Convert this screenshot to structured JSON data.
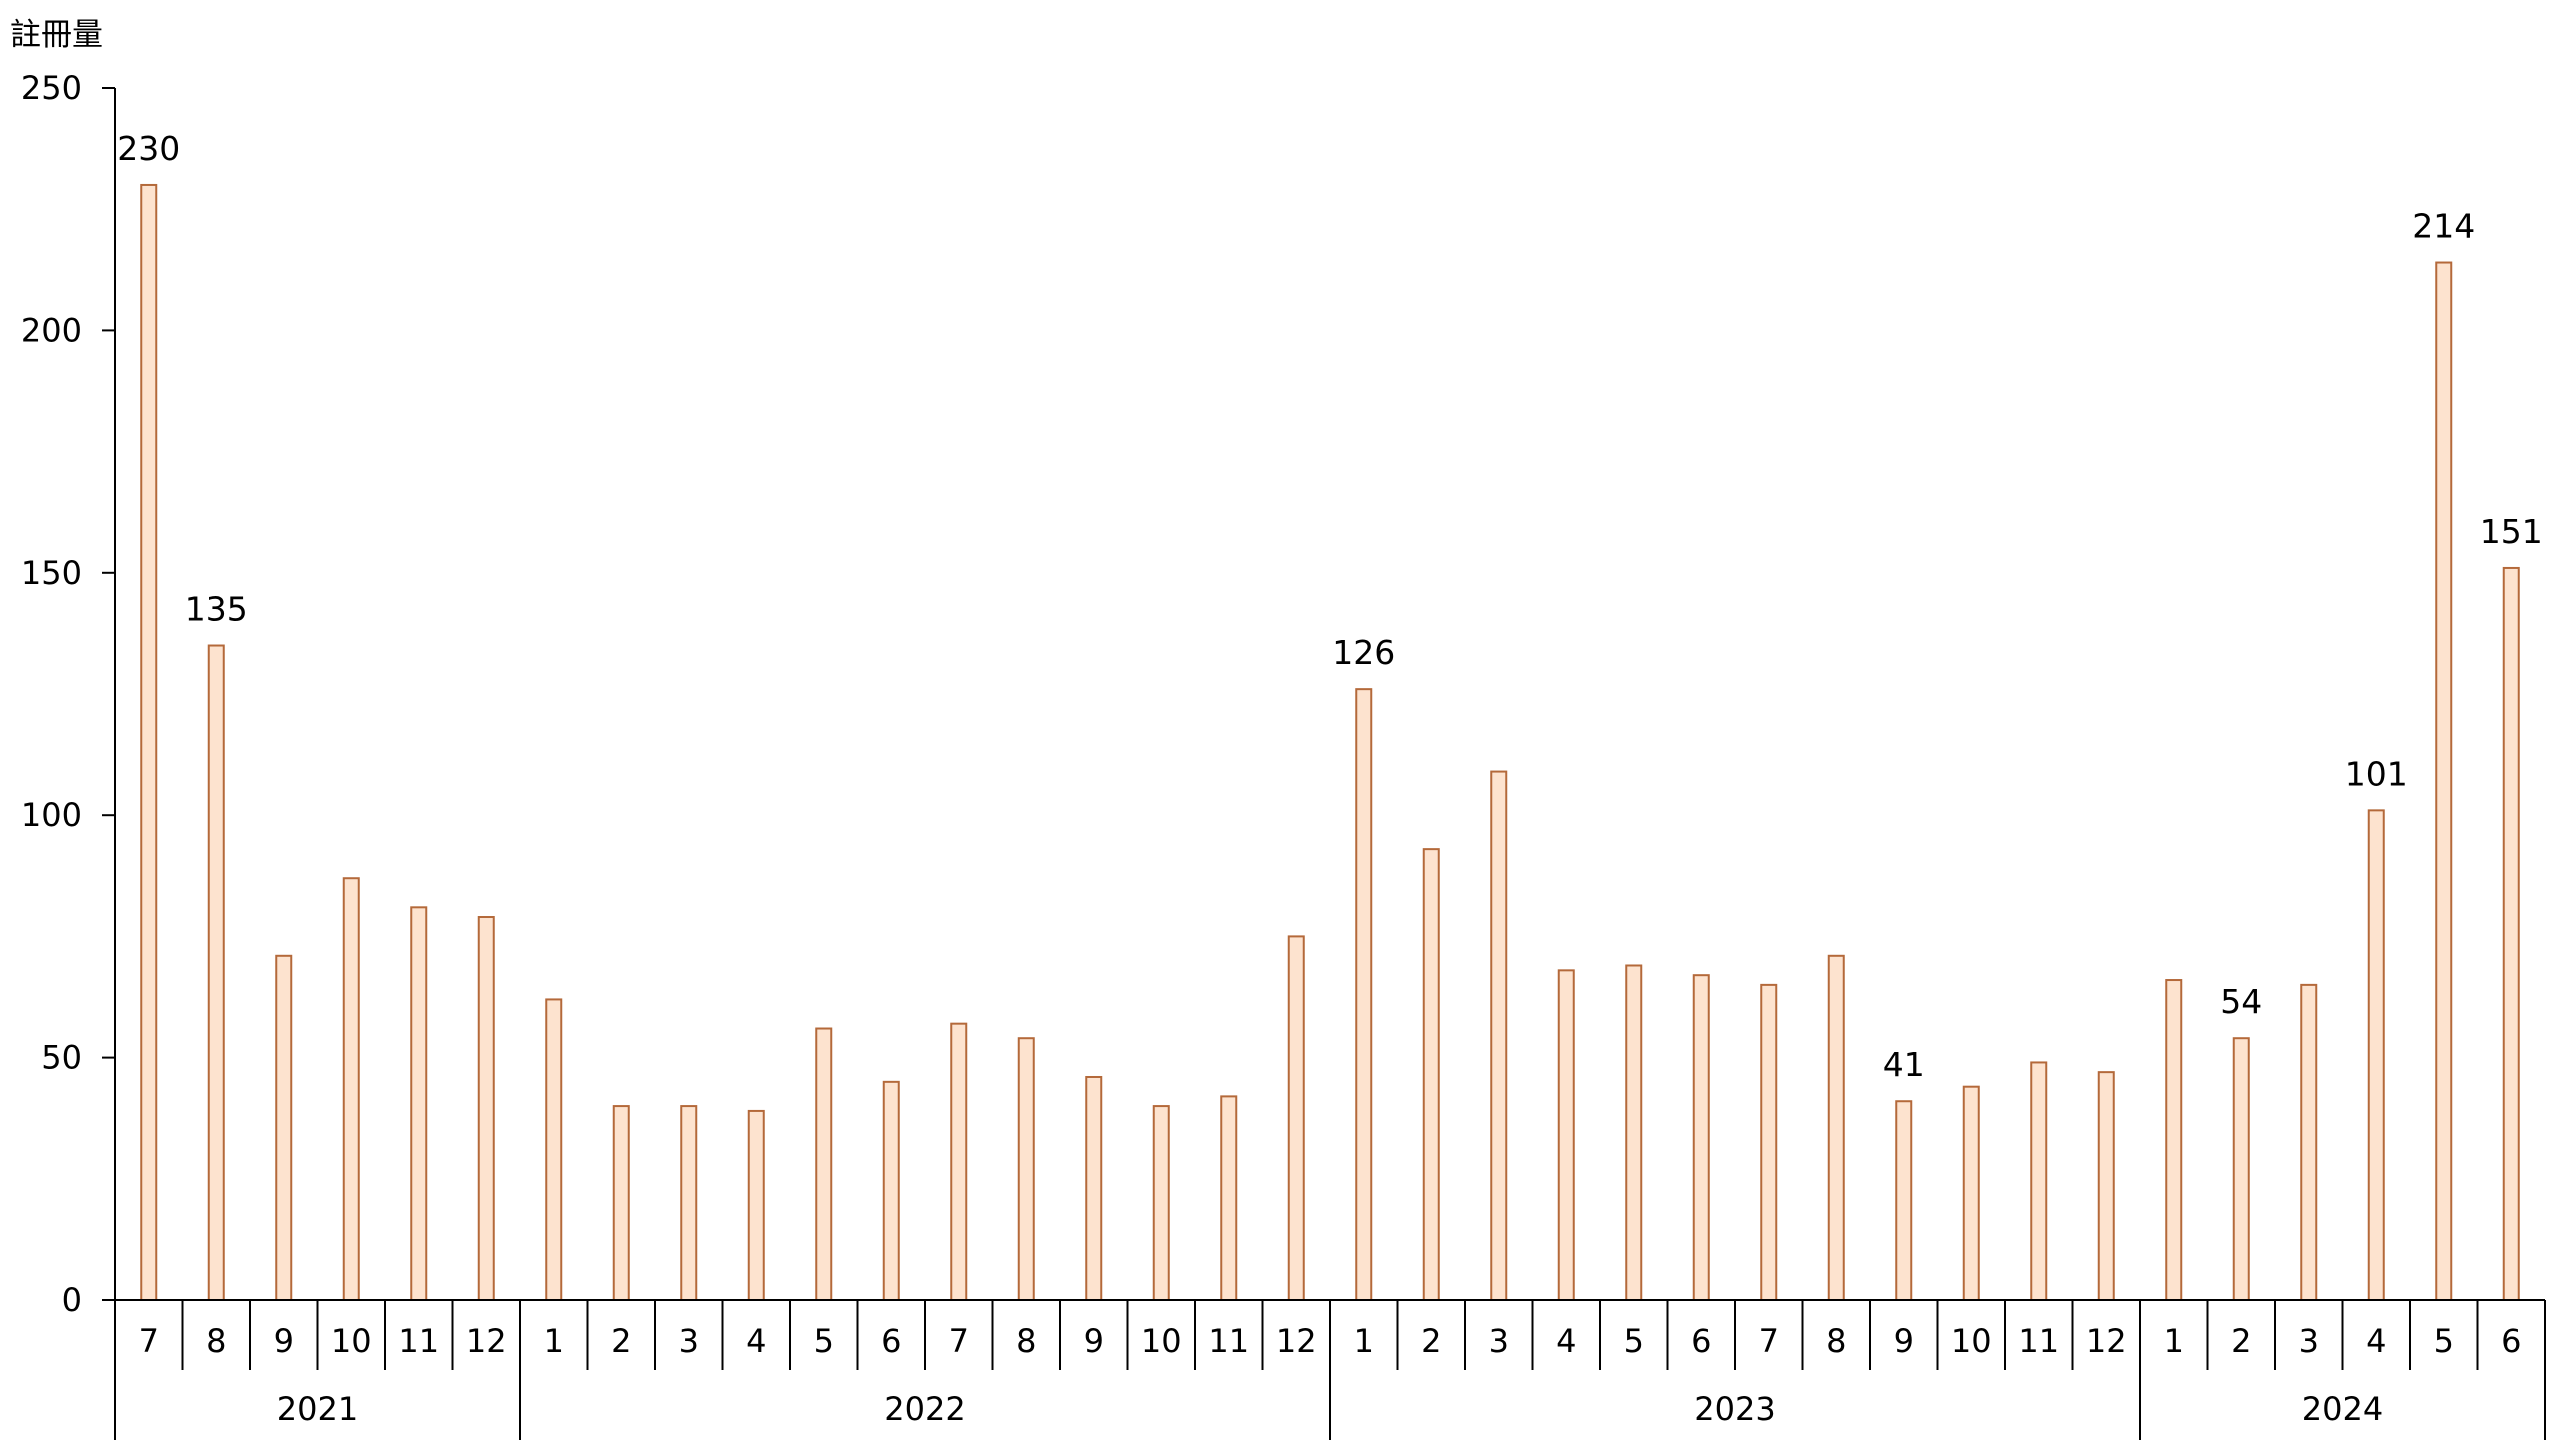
{
  "chart_data": {
    "type": "bar",
    "ylabel": "註冊量",
    "ylim": [
      0,
      250
    ],
    "yticks": [
      0,
      50,
      100,
      150,
      200,
      250
    ],
    "grid": false,
    "legend": "none",
    "colors": {
      "bar_fill": "#fde3cf",
      "bar_stroke": "#b4693a",
      "axis": "#000000"
    },
    "groups": [
      {
        "label": "2021",
        "months": [
          "7",
          "8",
          "9",
          "10",
          "11",
          "12"
        ]
      },
      {
        "label": "2022",
        "months": [
          "1",
          "2",
          "3",
          "4",
          "5",
          "6",
          "7",
          "8",
          "9",
          "10",
          "11",
          "12"
        ]
      },
      {
        "label": "2023",
        "months": [
          "1",
          "2",
          "3",
          "4",
          "5",
          "6",
          "7",
          "8",
          "9",
          "10",
          "11",
          "12"
        ]
      },
      {
        "label": "2024",
        "months": [
          "1",
          "2",
          "3",
          "4",
          "5",
          "6"
        ]
      }
    ],
    "values": [
      230,
      135,
      71,
      87,
      81,
      79,
      62,
      40,
      40,
      39,
      56,
      45,
      57,
      54,
      46,
      40,
      42,
      75,
      126,
      93,
      109,
      68,
      69,
      67,
      65,
      71,
      41,
      44,
      49,
      47,
      66,
      54,
      65,
      101,
      214,
      151
    ],
    "data_labels": [
      {
        "index": 0,
        "text": "230"
      },
      {
        "index": 1,
        "text": "135"
      },
      {
        "index": 18,
        "text": "126"
      },
      {
        "index": 26,
        "text": "41"
      },
      {
        "index": 31,
        "text": "54"
      },
      {
        "index": 33,
        "text": "101"
      },
      {
        "index": 34,
        "text": "214"
      },
      {
        "index": 35,
        "text": "151"
      }
    ]
  }
}
